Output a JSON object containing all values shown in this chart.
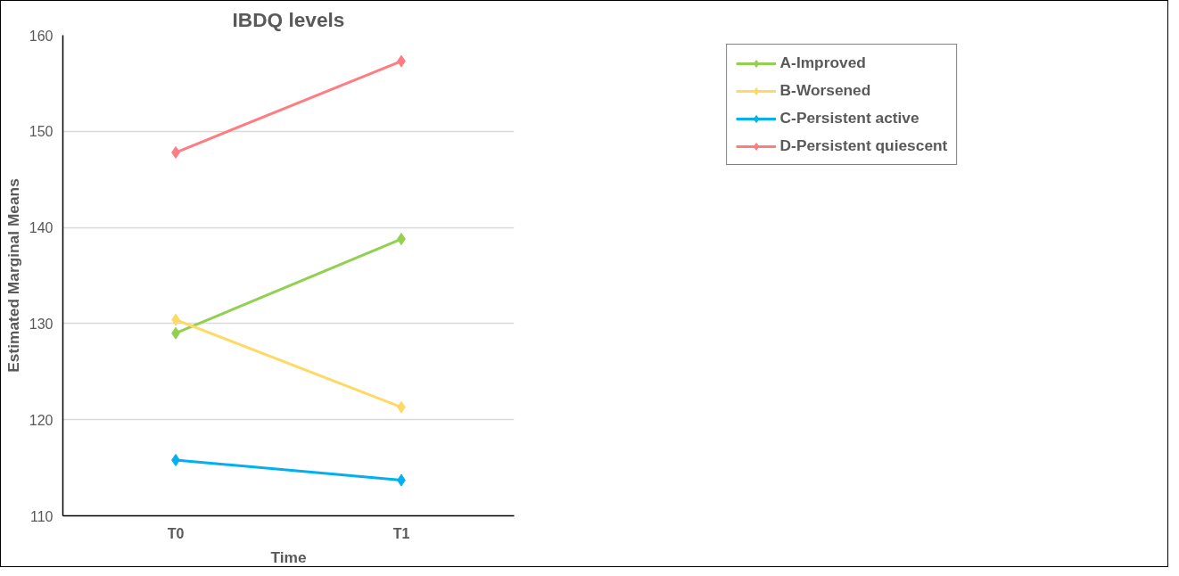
{
  "chart_data": {
    "type": "line",
    "title": "IBDQ levels",
    "xlabel": "Time",
    "ylabel": "Estimated Marginal Means",
    "categories": [
      "T0",
      "T1"
    ],
    "series": [
      {
        "name": "A-Improved",
        "color": "#92d050",
        "values": [
          129.0,
          138.8
        ]
      },
      {
        "name": "B-Worsened",
        "color": "#ffd966",
        "values": [
          130.4,
          121.3
        ]
      },
      {
        "name": "C-Persistent active",
        "color": "#00b0f0",
        "values": [
          115.8,
          113.7
        ]
      },
      {
        "name": "D-Persistent quiescent",
        "color": "#ff7c80",
        "values": [
          147.8,
          157.3
        ]
      }
    ],
    "ylim": [
      110,
      160
    ],
    "yticks": [
      110,
      120,
      130,
      140,
      150,
      160
    ],
    "grid": "y",
    "legend": "top right",
    "marker": "diamond",
    "line_style": "solid"
  }
}
